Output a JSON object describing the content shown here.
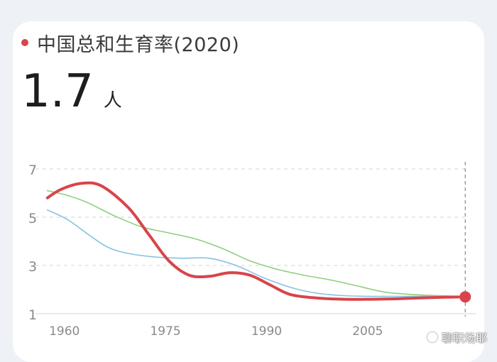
{
  "card": {
    "title": "中国总和生育率(2020)",
    "value": "1.7",
    "unit": "人"
  },
  "colors": {
    "china": "#d8444a",
    "series_green": "#8fcf7e",
    "series_blue": "#86c3e0",
    "dot": "#d8444a"
  },
  "watermark": {
    "text": "聊职场耶"
  },
  "chart_data": {
    "type": "line",
    "ylim": [
      1,
      7
    ],
    "xlim": [
      1957.5,
      2020.5
    ],
    "yticks": [
      1,
      3,
      5,
      7
    ],
    "xticks": [
      1960,
      1975,
      1990,
      2005
    ],
    "grid": true,
    "series": [
      {
        "key": "china",
        "x": [
          1958,
          1960,
          1963,
          1966,
          1970,
          1973,
          1976,
          1979,
          1982,
          1985,
          1988,
          1991,
          1994,
          1998,
          2002,
          2006,
          2010,
          2015,
          2020
        ],
        "values": [
          5.8,
          6.15,
          6.4,
          6.3,
          5.4,
          4.3,
          3.2,
          2.6,
          2.55,
          2.7,
          2.6,
          2.2,
          1.8,
          1.65,
          1.6,
          1.6,
          1.62,
          1.67,
          1.7
        ]
      },
      {
        "key": "green",
        "x": [
          1958,
          1961,
          1964,
          1968,
          1972,
          1976,
          1980,
          1984,
          1988,
          1992,
          1996,
          2000,
          2004,
          2008,
          2012,
          2016,
          2020
        ],
        "values": [
          6.1,
          5.9,
          5.6,
          5.05,
          4.6,
          4.35,
          4.1,
          3.7,
          3.2,
          2.85,
          2.6,
          2.4,
          2.15,
          1.9,
          1.8,
          1.75,
          1.72
        ]
      },
      {
        "key": "blue",
        "x": [
          1958,
          1961,
          1964,
          1967,
          1970,
          1974,
          1978,
          1982,
          1986,
          1990,
          1994,
          1998,
          2002,
          2006,
          2010,
          2015,
          2020
        ],
        "values": [
          5.3,
          4.9,
          4.3,
          3.75,
          3.5,
          3.35,
          3.3,
          3.3,
          3.0,
          2.5,
          2.1,
          1.85,
          1.75,
          1.72,
          1.72,
          1.72,
          1.7
        ]
      }
    ],
    "highlight_point": {
      "x": 2020,
      "y": 1.7
    }
  }
}
